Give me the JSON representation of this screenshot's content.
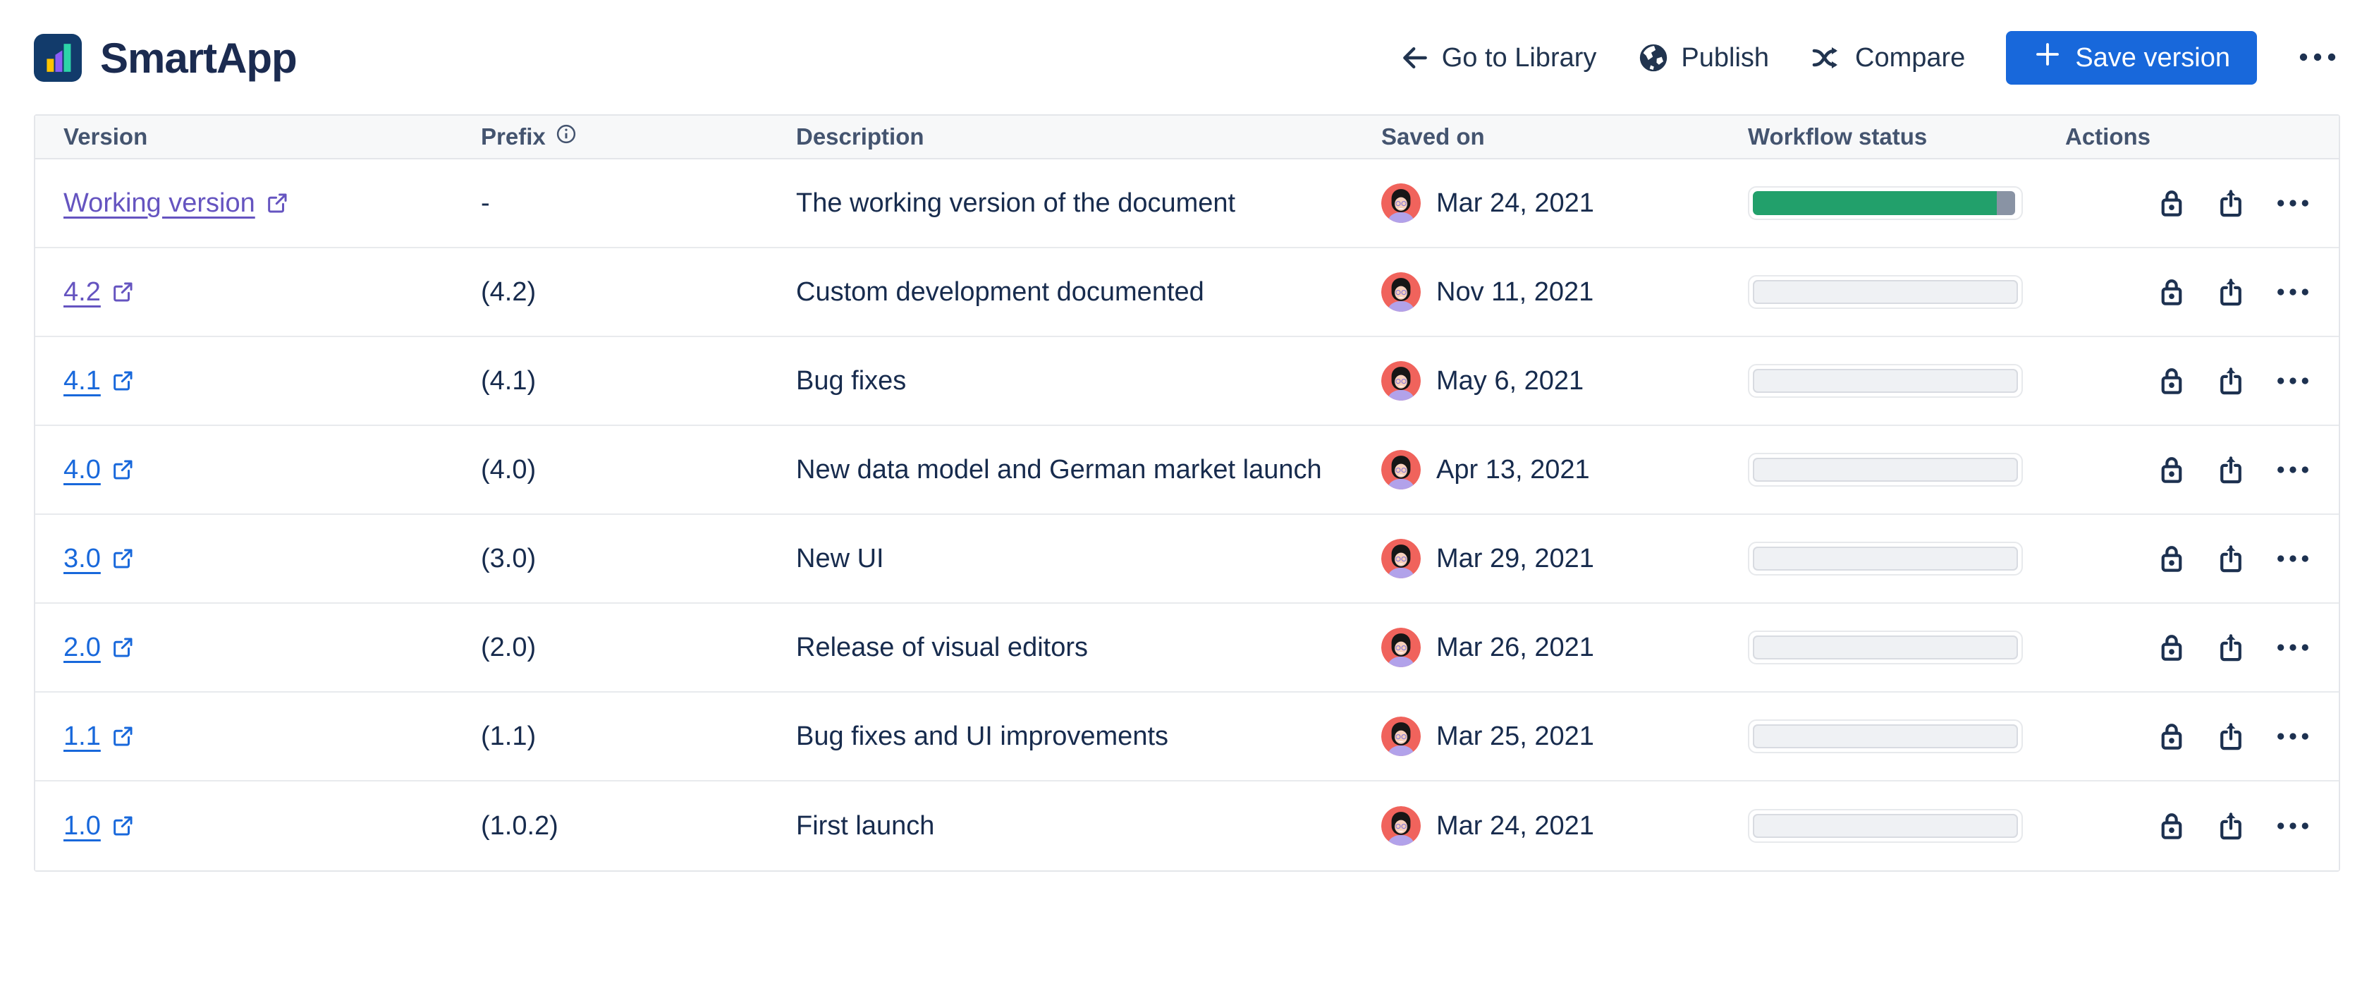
{
  "app": {
    "name": "SmartApp"
  },
  "toolbar": {
    "go_to_library": "Go to Library",
    "publish": "Publish",
    "compare": "Compare",
    "save_version": "Save version"
  },
  "colors": {
    "primary_blue": "#1868DB",
    "link_blue": "#1868DB",
    "visited_link_purple": "#6554C0",
    "progress_green": "#22A06B",
    "progress_gray": "#8993A4",
    "text_navy": "#172B4D",
    "avatar_coral": "#F0635C"
  },
  "table": {
    "headers": {
      "version": "Version",
      "prefix": "Prefix",
      "description": "Description",
      "saved_on": "Saved on",
      "workflow_status": "Workflow status",
      "actions": "Actions"
    },
    "rows": [
      {
        "version": "Working version",
        "visited": true,
        "prefix": "-",
        "description": "The working version of the document",
        "saved_on": "Mar 24, 2021",
        "workflow": {
          "green_pct": 92,
          "gray_pct": 7
        }
      },
      {
        "version": "4.2",
        "visited": true,
        "prefix": "(4.2)",
        "description": "Custom development documented",
        "saved_on": "Nov 11, 2021",
        "workflow": {
          "green_pct": 0,
          "gray_pct": 0
        }
      },
      {
        "version": "4.1",
        "visited": false,
        "prefix": "(4.1)",
        "description": "Bug fixes",
        "saved_on": "May 6, 2021",
        "workflow": {
          "green_pct": 0,
          "gray_pct": 0
        }
      },
      {
        "version": "4.0",
        "visited": false,
        "prefix": "(4.0)",
        "description": "New data model and German market launch",
        "saved_on": "Apr 13, 2021",
        "workflow": {
          "green_pct": 0,
          "gray_pct": 0
        }
      },
      {
        "version": "3.0",
        "visited": false,
        "prefix": "(3.0)",
        "description": "New UI",
        "saved_on": "Mar 29, 2021",
        "workflow": {
          "green_pct": 0,
          "gray_pct": 0
        }
      },
      {
        "version": "2.0",
        "visited": false,
        "prefix": "(2.0)",
        "description": "Release of visual editors",
        "saved_on": "Mar 26, 2021",
        "workflow": {
          "green_pct": 0,
          "gray_pct": 0
        }
      },
      {
        "version": "1.1",
        "visited": false,
        "prefix": "(1.1)",
        "description": "Bug fixes and UI improvements",
        "saved_on": "Mar 25, 2021",
        "workflow": {
          "green_pct": 0,
          "gray_pct": 0
        }
      },
      {
        "version": "1.0",
        "visited": false,
        "prefix": "(1.0.2)",
        "description": "First launch",
        "saved_on": "Mar 24, 2021",
        "workflow": {
          "green_pct": 0,
          "gray_pct": 0
        }
      }
    ]
  }
}
